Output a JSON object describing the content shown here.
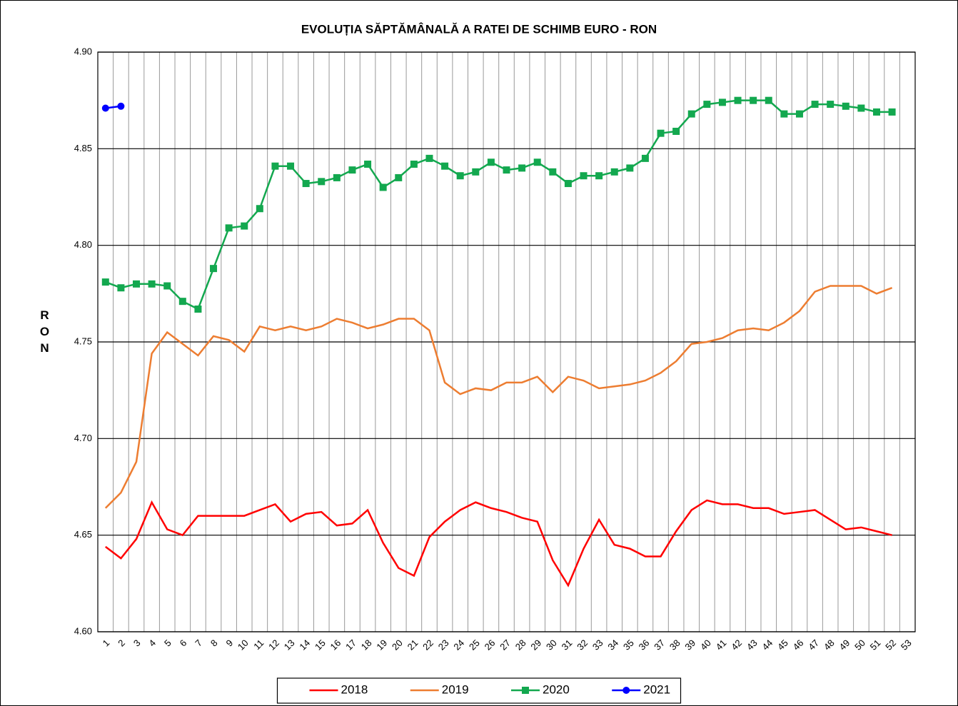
{
  "chart_data": {
    "type": "line",
    "title": "EVOLUȚIA SĂPTĂMÂNALĂ A RATEI DE SCHIMB EURO - RON",
    "y_label": "RON",
    "categories": [
      "1",
      "2",
      "3",
      "4",
      "5",
      "6",
      "7",
      "8",
      "9",
      "10",
      "11",
      "12",
      "13",
      "14",
      "15",
      "16",
      "17",
      "18",
      "19",
      "20",
      "21",
      "22",
      "23",
      "24",
      "25",
      "26",
      "27",
      "28",
      "29",
      "30",
      "31",
      "32",
      "33",
      "34",
      "35",
      "36",
      "37",
      "38",
      "39",
      "40",
      "41",
      "42",
      "43",
      "44",
      "45",
      "46",
      "47",
      "48",
      "49",
      "50",
      "51",
      "52",
      "53"
    ],
    "ylim": [
      4.6,
      4.9
    ],
    "yticks": [
      {
        "value": 4.6,
        "label": "4.60"
      },
      4.65,
      {
        "value": 4.7,
        "label": "4.70"
      },
      4.75,
      {
        "value": 4.8,
        "label": "4.80"
      },
      4.85,
      {
        "value": 4.9,
        "label": "4.90"
      }
    ],
    "grid": true,
    "legend": "bottom",
    "series": [
      {
        "name": "2018",
        "color": "#ff0000",
        "marker": "none",
        "values": [
          4.644,
          4.638,
          4.648,
          4.667,
          4.653,
          4.65,
          4.66,
          4.66,
          4.66,
          4.66,
          4.663,
          4.666,
          4.657,
          4.661,
          4.662,
          4.655,
          4.656,
          4.663,
          4.646,
          4.633,
          4.629,
          4.649,
          4.657,
          4.663,
          4.667,
          4.664,
          4.662,
          4.659,
          4.657,
          4.637,
          4.624,
          4.643,
          4.658,
          4.645,
          4.643,
          4.639,
          4.639,
          4.652,
          4.663,
          4.668,
          4.666,
          4.666,
          4.664,
          4.664,
          4.661,
          4.662,
          4.663,
          4.658,
          4.653,
          4.654,
          4.652,
          4.65,
          null
        ]
      },
      {
        "name": "2019",
        "color": "#ed7d31",
        "marker": "none",
        "values": [
          4.664,
          4.672,
          4.688,
          4.744,
          4.755,
          4.749,
          4.743,
          4.753,
          4.751,
          4.745,
          4.758,
          4.756,
          4.758,
          4.756,
          4.758,
          4.762,
          4.76,
          4.757,
          4.759,
          4.762,
          4.762,
          4.756,
          4.729,
          4.723,
          4.726,
          4.725,
          4.729,
          4.729,
          4.732,
          4.724,
          4.732,
          4.73,
          4.726,
          4.727,
          4.728,
          4.73,
          4.734,
          4.74,
          4.749,
          4.75,
          4.752,
          4.756,
          4.757,
          4.756,
          4.76,
          4.766,
          4.776,
          4.779,
          4.779,
          4.779,
          4.775,
          4.778,
          null
        ]
      },
      {
        "name": "2020",
        "color": "#13a84f",
        "marker": "square",
        "values": [
          4.781,
          4.778,
          4.78,
          4.78,
          4.779,
          4.771,
          4.767,
          4.788,
          4.809,
          4.81,
          4.819,
          4.841,
          4.841,
          4.832,
          4.833,
          4.835,
          4.839,
          4.842,
          4.83,
          4.835,
          4.842,
          4.845,
          4.841,
          4.836,
          4.838,
          4.843,
          4.839,
          4.84,
          4.843,
          4.838,
          4.832,
          4.836,
          4.836,
          4.838,
          4.84,
          4.845,
          4.858,
          4.859,
          4.868,
          4.873,
          4.874,
          4.875,
          4.875,
          4.875,
          4.868,
          4.868,
          4.873,
          4.873,
          4.872,
          4.871,
          4.869,
          4.869,
          null
        ]
      },
      {
        "name": "2021",
        "color": "#0000ff",
        "marker": "circle",
        "values": [
          4.871,
          4.872,
          null,
          null,
          null,
          null,
          null,
          null,
          null,
          null,
          null,
          null,
          null,
          null,
          null,
          null,
          null,
          null,
          null,
          null,
          null,
          null,
          null,
          null,
          null,
          null,
          null,
          null,
          null,
          null,
          null,
          null,
          null,
          null,
          null,
          null,
          null,
          null,
          null,
          null,
          null,
          null,
          null,
          null,
          null,
          null,
          null,
          null,
          null,
          null,
          null,
          null,
          null
        ]
      }
    ]
  }
}
